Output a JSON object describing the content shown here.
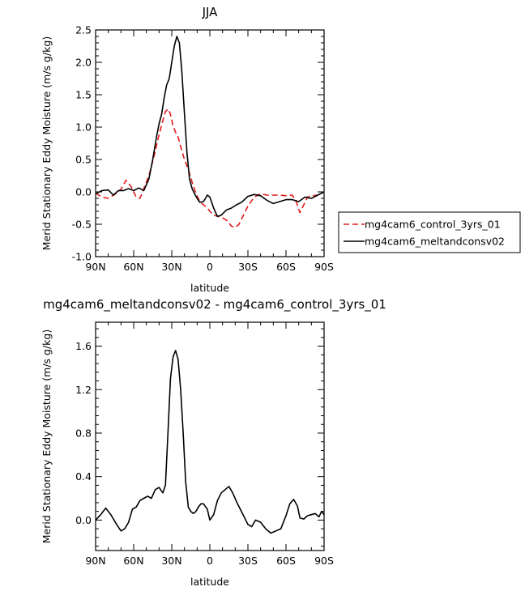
{
  "chart_data": [
    {
      "type": "line",
      "title": "JJA",
      "xlabel": "latitude",
      "ylabel": "Merid Stationary Eddy Moisture (m/s g/kg)",
      "xlim": [
        90,
        -90
      ],
      "ylim": [
        -1.0,
        2.5
      ],
      "x_ticks": [
        90,
        60,
        30,
        0,
        -30,
        -60,
        -90
      ],
      "x_tick_labels": [
        "90N",
        "60N",
        "30N",
        "0",
        "30S",
        "60S",
        "90S"
      ],
      "y_ticks": [
        -1.0,
        -0.5,
        0.0,
        0.5,
        1.0,
        1.5,
        2.0,
        2.5
      ],
      "y_tick_labels": [
        "-1.0",
        "-0.5",
        "0.0",
        "0.5",
        "1.0",
        "1.5",
        "2.0",
        "2.5"
      ],
      "grid": false,
      "legend_position": "right",
      "series": [
        {
          "name": "mg4cam6_control_3yrs_01",
          "color": "#e41a1c",
          "dash": "dashed",
          "x": [
            90,
            85,
            80,
            75,
            70,
            66,
            62,
            58,
            55,
            52,
            48,
            44,
            40,
            37,
            35,
            33,
            31,
            29,
            27,
            25,
            23,
            20,
            17,
            14,
            11,
            8,
            5,
            2,
            0,
            -3,
            -7,
            -10,
            -14,
            -17,
            -20,
            -23,
            -26,
            -30,
            -35,
            -40,
            -45,
            -50,
            -55,
            -60,
            -65,
            -68,
            -71,
            -74,
            -77,
            -80,
            -85,
            -90
          ],
          "y": [
            -0.02,
            -0.08,
            -0.1,
            -0.04,
            0.04,
            0.18,
            0.08,
            -0.08,
            -0.1,
            0.05,
            0.25,
            0.55,
            0.88,
            1.1,
            1.24,
            1.28,
            1.2,
            1.02,
            0.92,
            0.85,
            0.7,
            0.5,
            0.35,
            0.15,
            -0.02,
            -0.15,
            -0.2,
            -0.25,
            -0.3,
            -0.36,
            -0.38,
            -0.4,
            -0.45,
            -0.53,
            -0.55,
            -0.5,
            -0.38,
            -0.22,
            -0.08,
            -0.03,
            -0.05,
            -0.05,
            -0.05,
            -0.06,
            -0.05,
            -0.15,
            -0.32,
            -0.2,
            -0.08,
            -0.06,
            -0.05,
            0.0
          ]
        },
        {
          "name": "mg4cam6_meltandconsv02",
          "color": "#000000",
          "dash": "solid",
          "x": [
            90,
            85,
            80,
            76,
            72,
            68,
            64,
            60,
            56,
            52,
            48,
            45,
            42,
            40,
            38,
            36,
            34,
            32,
            30,
            28,
            26,
            24,
            22,
            20,
            18,
            16,
            14,
            12,
            10,
            8,
            5,
            2,
            0,
            -3,
            -6,
            -9,
            -13,
            -17,
            -21,
            -25,
            -30,
            -35,
            -40,
            -45,
            -50,
            -55,
            -60,
            -65,
            -70,
            -75,
            -80,
            -85,
            -90
          ],
          "y": [
            -0.03,
            0.02,
            0.03,
            -0.05,
            0.02,
            0.02,
            0.05,
            0.02,
            0.06,
            0.02,
            0.2,
            0.5,
            0.85,
            1.05,
            1.2,
            1.45,
            1.65,
            1.75,
            2.0,
            2.25,
            2.4,
            2.3,
            1.85,
            1.2,
            0.6,
            0.2,
            0.05,
            -0.03,
            -0.1,
            -0.16,
            -0.15,
            -0.05,
            -0.08,
            -0.25,
            -0.38,
            -0.36,
            -0.28,
            -0.25,
            -0.2,
            -0.16,
            -0.07,
            -0.04,
            -0.06,
            -0.13,
            -0.18,
            -0.15,
            -0.12,
            -0.12,
            -0.15,
            -0.08,
            -0.1,
            -0.05,
            0.0
          ]
        }
      ]
    },
    {
      "type": "line",
      "title": "mg4cam6_meltandconsv02 - mg4cam6_control_3yrs_01",
      "xlabel": "latitude",
      "ylabel": "Merid Stationary Eddy Moisture (m/s g/kg)",
      "xlim": [
        90,
        -90
      ],
      "ylim": [
        -0.28,
        1.82
      ],
      "x_ticks": [
        90,
        60,
        30,
        0,
        -30,
        -60,
        -90
      ],
      "x_tick_labels": [
        "90N",
        "60N",
        "30N",
        "0",
        "30S",
        "60S",
        "90S"
      ],
      "y_ticks": [
        0.0,
        0.4,
        0.8,
        1.2,
        1.6
      ],
      "y_tick_labels": [
        "0.0",
        "0.4",
        "0.8",
        "1.2",
        "1.6"
      ],
      "grid": false,
      "series": [
        {
          "color": "#000000",
          "dash": "solid",
          "x": [
            90,
            86,
            82,
            78,
            74,
            70,
            67,
            64,
            61,
            58,
            55,
            52,
            49,
            46,
            43,
            40,
            37,
            35,
            33,
            31,
            29,
            27,
            25,
            23,
            21,
            19,
            17,
            15,
            13,
            11,
            9,
            7,
            5,
            2,
            0,
            -3,
            -6,
            -9,
            -12,
            -15,
            -18,
            -21,
            -24,
            -27,
            -30,
            -33,
            -36,
            -40,
            -44,
            -48,
            -52,
            -56,
            -60,
            -63,
            -66,
            -69,
            -71,
            -74,
            -77,
            -80,
            -83,
            -86,
            -88,
            -90
          ],
          "y": [
            0.0,
            0.05,
            0.11,
            0.05,
            -0.03,
            -0.1,
            -0.08,
            -0.02,
            0.1,
            0.12,
            0.18,
            0.2,
            0.22,
            0.2,
            0.28,
            0.3,
            0.25,
            0.32,
            0.8,
            1.3,
            1.5,
            1.56,
            1.48,
            1.2,
            0.8,
            0.35,
            0.12,
            0.08,
            0.06,
            0.08,
            0.12,
            0.15,
            0.15,
            0.1,
            0.0,
            0.05,
            0.18,
            0.25,
            0.28,
            0.31,
            0.25,
            0.17,
            0.1,
            0.03,
            -0.04,
            -0.06,
            0.0,
            -0.02,
            -0.08,
            -0.12,
            -0.1,
            -0.08,
            0.04,
            0.15,
            0.19,
            0.13,
            0.02,
            0.01,
            0.04,
            0.05,
            0.06,
            0.03,
            0.08,
            0.05
          ]
        }
      ]
    }
  ]
}
